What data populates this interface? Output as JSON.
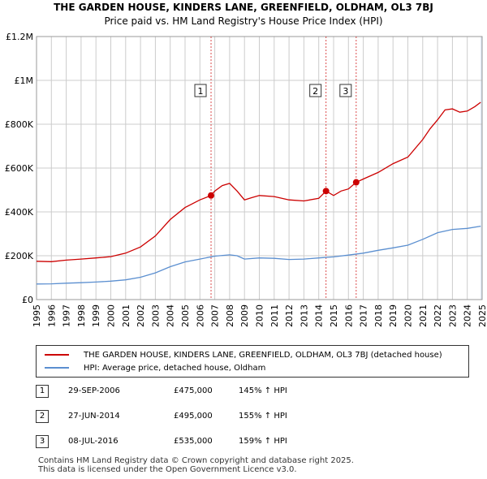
{
  "title": "THE GARDEN HOUSE, KINDERS LANE, GREENFIELD, OLDHAM, OL3 7BJ",
  "subtitle": "Price paid vs. HM Land Registry's House Price Index (HPI)",
  "colors": {
    "property": "#cc0000",
    "hpi": "#5b8fd0",
    "grid": "#cccccc",
    "shade": "#dde6f3"
  },
  "chart_data": {
    "type": "line",
    "x_min": 1995,
    "x_max": 2025,
    "ylim": [
      0,
      1200000
    ],
    "y_ticks": [
      {
        "value": 0,
        "label": "£0"
      },
      {
        "value": 200000,
        "label": "£200K"
      },
      {
        "value": 400000,
        "label": "£400K"
      },
      {
        "value": 600000,
        "label": "£600K"
      },
      {
        "value": 800000,
        "label": "£800K"
      },
      {
        "value": 1000000,
        "label": "£1M"
      },
      {
        "value": 1200000,
        "label": "£1.2M"
      }
    ],
    "x_ticks": [
      "1995",
      "1996",
      "1997",
      "1998",
      "1999",
      "2000",
      "2001",
      "2002",
      "2003",
      "2004",
      "2005",
      "2006",
      "2007",
      "2008",
      "2009",
      "2010",
      "2011",
      "2012",
      "2013",
      "2014",
      "2015",
      "2016",
      "2017",
      "2018",
      "2019",
      "2020",
      "2021",
      "2022",
      "2023",
      "2024",
      "2025"
    ],
    "series": [
      {
        "name": "THE GARDEN HOUSE, KINDERS LANE, GREENFIELD, OLDHAM, OL3 7BJ (detached house)",
        "points": [
          [
            1995,
            175000
          ],
          [
            1996,
            173000
          ],
          [
            1997,
            180000
          ],
          [
            1998,
            185000
          ],
          [
            1999,
            190000
          ],
          [
            2000,
            196000
          ],
          [
            2001,
            212000
          ],
          [
            2002,
            240000
          ],
          [
            2003,
            290000
          ],
          [
            2004,
            365000
          ],
          [
            2005,
            420000
          ],
          [
            2006,
            455000
          ],
          [
            2006.75,
            475000
          ],
          [
            2007,
            495000
          ],
          [
            2007.5,
            520000
          ],
          [
            2008,
            530000
          ],
          [
            2008.5,
            495000
          ],
          [
            2009,
            455000
          ],
          [
            2009.5,
            465000
          ],
          [
            2010,
            475000
          ],
          [
            2011,
            470000
          ],
          [
            2012,
            455000
          ],
          [
            2013,
            450000
          ],
          [
            2014,
            462000
          ],
          [
            2014.49,
            495000
          ],
          [
            2015,
            475000
          ],
          [
            2015.5,
            495000
          ],
          [
            2016,
            505000
          ],
          [
            2016.52,
            535000
          ],
          [
            2017,
            550000
          ],
          [
            2018,
            580000
          ],
          [
            2019,
            620000
          ],
          [
            2020,
            650000
          ],
          [
            2021,
            730000
          ],
          [
            2021.5,
            780000
          ],
          [
            2022,
            820000
          ],
          [
            2022.5,
            865000
          ],
          [
            2023,
            870000
          ],
          [
            2023.5,
            855000
          ],
          [
            2024,
            860000
          ],
          [
            2024.5,
            880000
          ],
          [
            2024.9,
            900000
          ]
        ]
      },
      {
        "name": "HPI: Average price, detached house, Oldham",
        "points": [
          [
            1995,
            71000
          ],
          [
            1996,
            72000
          ],
          [
            1997,
            75000
          ],
          [
            1998,
            77000
          ],
          [
            1999,
            80000
          ],
          [
            2000,
            84000
          ],
          [
            2001,
            90000
          ],
          [
            2002,
            102000
          ],
          [
            2003,
            122000
          ],
          [
            2004,
            150000
          ],
          [
            2005,
            172000
          ],
          [
            2006,
            185000
          ],
          [
            2007,
            198000
          ],
          [
            2008,
            204000
          ],
          [
            2008.5,
            200000
          ],
          [
            2009,
            185000
          ],
          [
            2010,
            190000
          ],
          [
            2011,
            188000
          ],
          [
            2012,
            183000
          ],
          [
            2013,
            185000
          ],
          [
            2014,
            190000
          ],
          [
            2015,
            195000
          ],
          [
            2016,
            203000
          ],
          [
            2017,
            212000
          ],
          [
            2018,
            225000
          ],
          [
            2019,
            236000
          ],
          [
            2020,
            248000
          ],
          [
            2021,
            275000
          ],
          [
            2022,
            305000
          ],
          [
            2023,
            320000
          ],
          [
            2024,
            325000
          ],
          [
            2024.9,
            335000
          ]
        ]
      }
    ],
    "sales": [
      {
        "num": "1",
        "x": 2006.75,
        "value": 475000
      },
      {
        "num": "2",
        "x": 2014.49,
        "value": 495000
      },
      {
        "num": "3",
        "x": 2016.52,
        "value": 535000
      }
    ]
  },
  "legend": {
    "property": "THE GARDEN HOUSE, KINDERS LANE, GREENFIELD, OLDHAM, OL3 7BJ (detached house)",
    "hpi": "HPI: Average price, detached house, Oldham"
  },
  "sales_table": [
    {
      "num": "1",
      "date": "29-SEP-2006",
      "price": "£475,000",
      "hpi": "145% ↑ HPI"
    },
    {
      "num": "2",
      "date": "27-JUN-2014",
      "price": "£495,000",
      "hpi": "155% ↑ HPI"
    },
    {
      "num": "3",
      "date": "08-JUL-2016",
      "price": "£535,000",
      "hpi": "159% ↑ HPI"
    }
  ],
  "footer": {
    "line1": "Contains HM Land Registry data © Crown copyright and database right 2025.",
    "line2": "This data is licensed under the Open Government Licence v3.0."
  }
}
